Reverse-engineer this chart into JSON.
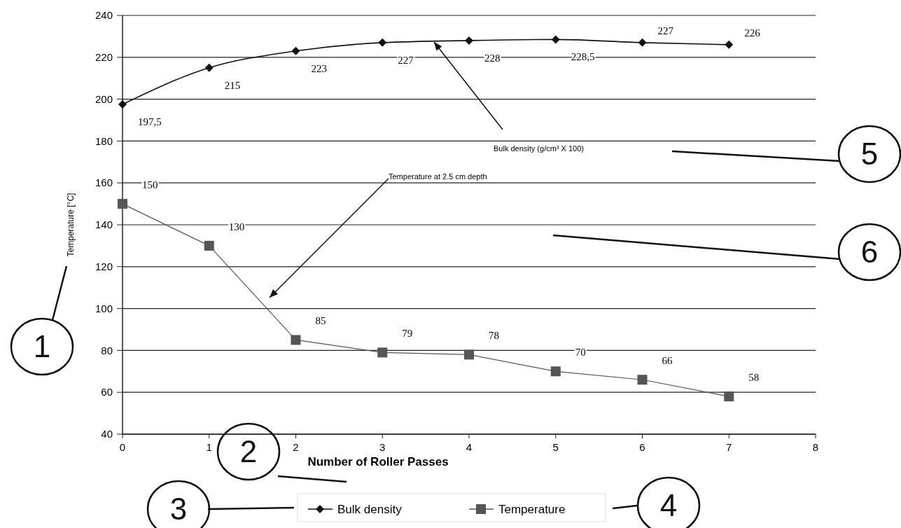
{
  "chart_data": {
    "type": "line",
    "x": [
      0,
      1,
      2,
      3,
      4,
      5,
      6,
      7
    ],
    "series": [
      {
        "name": "Bulk density",
        "color": "#111111",
        "marker": "diamond",
        "values": [
          197.5,
          215,
          223,
          227,
          228,
          228.5,
          227,
          226
        ],
        "value_labels": [
          "197,5",
          "215",
          "223",
          "227",
          "228",
          "228,5",
          "227",
          "226"
        ]
      },
      {
        "name": "Temperature",
        "color": "#555555",
        "marker": "square",
        "values": [
          150,
          130,
          85,
          79,
          78,
          70,
          66,
          58
        ],
        "value_labels": [
          "150",
          "130",
          "85",
          "79",
          "78",
          "70",
          "66",
          "58"
        ]
      }
    ],
    "xlabel": "Number of Roller Passes",
    "ylabel": "Temperature [°C]",
    "xlim": [
      0,
      8
    ],
    "xticks": [
      0,
      1,
      2,
      3,
      4,
      5,
      6,
      7,
      8
    ],
    "ylim": [
      40,
      240
    ],
    "yticks": [
      40,
      60,
      80,
      100,
      120,
      140,
      160,
      180,
      200,
      220,
      240
    ],
    "grid": "y",
    "legend": "bottom",
    "line_style": "solid",
    "annotations": [
      "Bulk density (g/cm³ X 100)",
      "Temperature at 2.5 cm depth",
      "1",
      "2",
      "3",
      "4",
      "5",
      "6"
    ]
  }
}
